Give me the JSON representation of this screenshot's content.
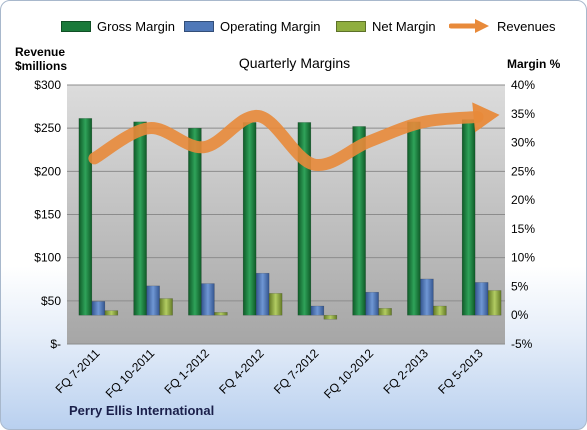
{
  "chart_data": {
    "type": "bar",
    "title": "Quarterly Margins",
    "y_left_label_line1": "Revenue",
    "y_left_label_line2": "$millions",
    "y_right_label": "Margin %",
    "categories": [
      "FQ 7-2011",
      "FQ 10-2011",
      "FQ 1-2012",
      "FQ 4-2012",
      "FQ 7-2012",
      "FQ 10-2012",
      "FQ 2-2013",
      "FQ 5-2013"
    ],
    "left_axis": {
      "min": 0,
      "max": 300,
      "step": 50,
      "ticks": [
        "$-",
        "$50",
        "$100",
        "$150",
        "$200",
        "$250",
        "$300"
      ]
    },
    "right_axis": {
      "min": -5,
      "max": 40,
      "step": 5,
      "ticks": [
        "-5%",
        "0%",
        "5%",
        "10%",
        "15%",
        "20%",
        "25%",
        "30%",
        "35%",
        "40%"
      ]
    },
    "series": [
      {
        "name": "Gross Margin",
        "axis": "right",
        "kind": "bar",
        "color": "#1a7a3a",
        "values": [
          34.2,
          33.6,
          32.5,
          33.5,
          33.5,
          32.8,
          33.6,
          34.0
        ]
      },
      {
        "name": "Operating Margin",
        "axis": "right",
        "kind": "bar",
        "color": "#4f78b8",
        "values": [
          2.4,
          5.1,
          5.5,
          7.3,
          1.6,
          4.0,
          6.3,
          5.7
        ]
      },
      {
        "name": "Net Margin",
        "axis": "right",
        "kind": "bar",
        "color": "#8fae3f",
        "values": [
          0.8,
          2.9,
          0.5,
          3.8,
          -0.7,
          1.2,
          1.6,
          4.3
        ]
      },
      {
        "name": "Revenues",
        "axis": "left",
        "kind": "line",
        "color": "#e88a3a",
        "values": [
          215,
          250,
          228,
          264,
          208,
          234,
          257,
          263
        ]
      }
    ],
    "grid": true,
    "legend_position": "top"
  },
  "company": "Perry Ellis International"
}
